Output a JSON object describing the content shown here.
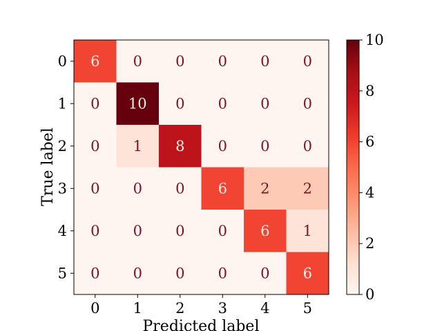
{
  "chart_data": {
    "type": "heatmap",
    "title": "",
    "xlabel": "Predicted label",
    "ylabel": "True label",
    "x_categories": [
      "0",
      "1",
      "2",
      "3",
      "4",
      "5"
    ],
    "y_categories": [
      "0",
      "1",
      "2",
      "3",
      "4",
      "5"
    ],
    "matrix": [
      [
        6,
        0,
        0,
        0,
        0,
        0
      ],
      [
        0,
        10,
        0,
        0,
        0,
        0
      ],
      [
        0,
        1,
        8,
        0,
        0,
        0
      ],
      [
        0,
        0,
        0,
        6,
        2,
        2
      ],
      [
        0,
        0,
        0,
        0,
        6,
        1
      ],
      [
        0,
        0,
        0,
        0,
        0,
        6
      ]
    ],
    "colormap": "Reds",
    "vmin": 0,
    "vmax": 10,
    "colorbar_ticks": [
      "0",
      "2",
      "4",
      "6",
      "8",
      "10"
    ],
    "text_color_low": "#7f1120",
    "text_color_high": "#fdeee8"
  }
}
